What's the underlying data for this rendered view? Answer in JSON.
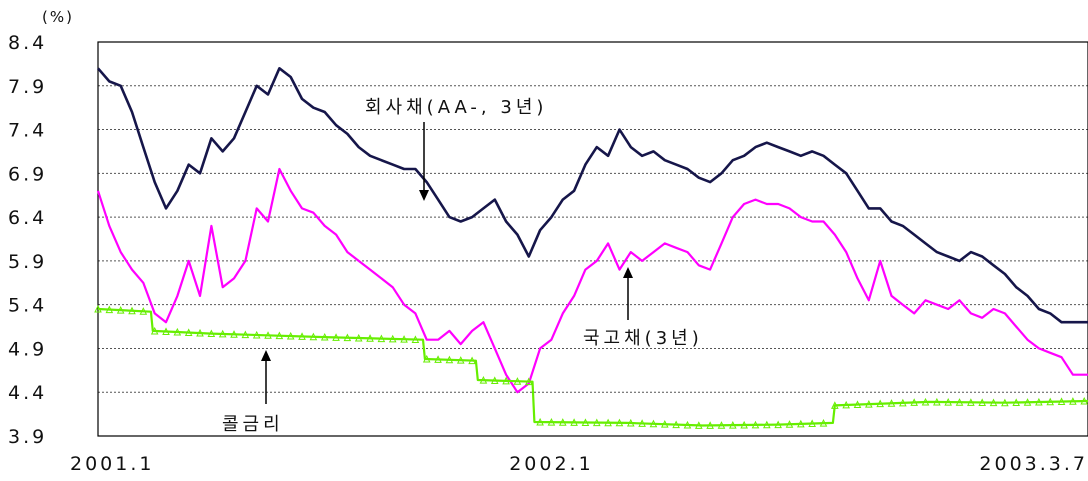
{
  "chart_data": {
    "type": "line",
    "y_unit": "(%)",
    "ylim": [
      3.9,
      8.4
    ],
    "y_ticks": [
      "8.4",
      "7.9",
      "7.4",
      "6.9",
      "6.4",
      "5.9",
      "5.4",
      "4.9",
      "4.4",
      "3.9"
    ],
    "x_ticks": [
      "2001.1",
      "2002.1",
      "2003.3.7"
    ],
    "x_tick_positions": [
      0,
      12,
      26.2
    ],
    "x_range": [
      0,
      26.2
    ],
    "grid": true,
    "annotations": [
      {
        "text": "회사채(AA-, 3년)",
        "series": 0
      },
      {
        "text": "국고채(3년)",
        "series": 1
      },
      {
        "text": "콜금리",
        "series": 2
      }
    ],
    "series": [
      {
        "name": "회사채(AA-, 3년)",
        "color": "#16164a",
        "points": [
          [
            0,
            8.1
          ],
          [
            0.3,
            7.95
          ],
          [
            0.6,
            7.9
          ],
          [
            0.9,
            7.6
          ],
          [
            1.2,
            7.2
          ],
          [
            1.5,
            6.8
          ],
          [
            1.8,
            6.5
          ],
          [
            2.1,
            6.7
          ],
          [
            2.4,
            7.0
          ],
          [
            2.7,
            6.9
          ],
          [
            3.0,
            7.3
          ],
          [
            3.3,
            7.15
          ],
          [
            3.6,
            7.3
          ],
          [
            3.9,
            7.6
          ],
          [
            4.2,
            7.9
          ],
          [
            4.5,
            7.8
          ],
          [
            4.8,
            8.1
          ],
          [
            5.1,
            8.0
          ],
          [
            5.4,
            7.75
          ],
          [
            5.7,
            7.65
          ],
          [
            6.0,
            7.6
          ],
          [
            6.3,
            7.45
          ],
          [
            6.6,
            7.35
          ],
          [
            6.9,
            7.2
          ],
          [
            7.2,
            7.1
          ],
          [
            7.5,
            7.05
          ],
          [
            7.8,
            7.0
          ],
          [
            8.1,
            6.95
          ],
          [
            8.4,
            6.95
          ],
          [
            8.7,
            6.8
          ],
          [
            9.0,
            6.6
          ],
          [
            9.3,
            6.4
          ],
          [
            9.6,
            6.35
          ],
          [
            9.9,
            6.4
          ],
          [
            10.2,
            6.5
          ],
          [
            10.5,
            6.6
          ],
          [
            10.8,
            6.35
          ],
          [
            11.1,
            6.2
          ],
          [
            11.4,
            5.95
          ],
          [
            11.7,
            6.25
          ],
          [
            12.0,
            6.4
          ],
          [
            12.3,
            6.6
          ],
          [
            12.6,
            6.7
          ],
          [
            12.9,
            7.0
          ],
          [
            13.2,
            7.2
          ],
          [
            13.5,
            7.1
          ],
          [
            13.8,
            7.4
          ],
          [
            14.1,
            7.2
          ],
          [
            14.4,
            7.1
          ],
          [
            14.7,
            7.15
          ],
          [
            15.0,
            7.05
          ],
          [
            15.3,
            7.0
          ],
          [
            15.6,
            6.95
          ],
          [
            15.9,
            6.85
          ],
          [
            16.2,
            6.8
          ],
          [
            16.5,
            6.9
          ],
          [
            16.8,
            7.05
          ],
          [
            17.1,
            7.1
          ],
          [
            17.4,
            7.2
          ],
          [
            17.7,
            7.25
          ],
          [
            18.0,
            7.2
          ],
          [
            18.3,
            7.15
          ],
          [
            18.6,
            7.1
          ],
          [
            18.9,
            7.15
          ],
          [
            19.2,
            7.1
          ],
          [
            19.5,
            7.0
          ],
          [
            19.8,
            6.9
          ],
          [
            20.1,
            6.7
          ],
          [
            20.4,
            6.5
          ],
          [
            20.7,
            6.5
          ],
          [
            21.0,
            6.35
          ],
          [
            21.3,
            6.3
          ],
          [
            21.6,
            6.2
          ],
          [
            21.9,
            6.1
          ],
          [
            22.2,
            6.0
          ],
          [
            22.5,
            5.95
          ],
          [
            22.8,
            5.9
          ],
          [
            23.1,
            6.0
          ],
          [
            23.4,
            5.95
          ],
          [
            23.7,
            5.85
          ],
          [
            24.0,
            5.75
          ],
          [
            24.3,
            5.6
          ],
          [
            24.6,
            5.5
          ],
          [
            24.9,
            5.35
          ],
          [
            25.2,
            5.3
          ],
          [
            25.5,
            5.2
          ],
          [
            25.8,
            5.2
          ],
          [
            26.2,
            5.2
          ]
        ]
      },
      {
        "name": "국고채(3년)",
        "color": "#ff00ff",
        "points": [
          [
            0,
            6.7
          ],
          [
            0.3,
            6.3
          ],
          [
            0.6,
            6.0
          ],
          [
            0.9,
            5.8
          ],
          [
            1.2,
            5.65
          ],
          [
            1.5,
            5.3
          ],
          [
            1.8,
            5.2
          ],
          [
            2.1,
            5.5
          ],
          [
            2.4,
            5.9
          ],
          [
            2.7,
            5.5
          ],
          [
            3.0,
            6.3
          ],
          [
            3.3,
            5.6
          ],
          [
            3.6,
            5.7
          ],
          [
            3.9,
            5.9
          ],
          [
            4.2,
            6.5
          ],
          [
            4.5,
            6.35
          ],
          [
            4.8,
            6.95
          ],
          [
            5.1,
            6.7
          ],
          [
            5.4,
            6.5
          ],
          [
            5.7,
            6.45
          ],
          [
            6.0,
            6.3
          ],
          [
            6.3,
            6.2
          ],
          [
            6.6,
            6.0
          ],
          [
            6.9,
            5.9
          ],
          [
            7.2,
            5.8
          ],
          [
            7.5,
            5.7
          ],
          [
            7.8,
            5.6
          ],
          [
            8.1,
            5.4
          ],
          [
            8.4,
            5.3
          ],
          [
            8.7,
            5.0
          ],
          [
            9.0,
            5.0
          ],
          [
            9.3,
            5.1
          ],
          [
            9.6,
            4.95
          ],
          [
            9.9,
            5.1
          ],
          [
            10.2,
            5.2
          ],
          [
            10.5,
            4.9
          ],
          [
            10.8,
            4.6
          ],
          [
            11.1,
            4.4
          ],
          [
            11.4,
            4.5
          ],
          [
            11.7,
            4.9
          ],
          [
            12.0,
            5.0
          ],
          [
            12.3,
            5.3
          ],
          [
            12.6,
            5.5
          ],
          [
            12.9,
            5.8
          ],
          [
            13.2,
            5.9
          ],
          [
            13.5,
            6.1
          ],
          [
            13.8,
            5.8
          ],
          [
            14.1,
            6.0
          ],
          [
            14.4,
            5.9
          ],
          [
            14.7,
            6.0
          ],
          [
            15.0,
            6.1
          ],
          [
            15.3,
            6.05
          ],
          [
            15.6,
            6.0
          ],
          [
            15.9,
            5.85
          ],
          [
            16.2,
            5.8
          ],
          [
            16.5,
            6.1
          ],
          [
            16.8,
            6.4
          ],
          [
            17.1,
            6.55
          ],
          [
            17.4,
            6.6
          ],
          [
            17.7,
            6.55
          ],
          [
            18.0,
            6.55
          ],
          [
            18.3,
            6.5
          ],
          [
            18.6,
            6.4
          ],
          [
            18.9,
            6.35
          ],
          [
            19.2,
            6.35
          ],
          [
            19.5,
            6.2
          ],
          [
            19.8,
            6.0
          ],
          [
            20.1,
            5.7
          ],
          [
            20.4,
            5.45
          ],
          [
            20.7,
            5.9
          ],
          [
            21.0,
            5.5
          ],
          [
            21.3,
            5.4
          ],
          [
            21.6,
            5.3
          ],
          [
            21.9,
            5.45
          ],
          [
            22.2,
            5.4
          ],
          [
            22.5,
            5.35
          ],
          [
            22.8,
            5.45
          ],
          [
            23.1,
            5.3
          ],
          [
            23.4,
            5.25
          ],
          [
            23.7,
            5.35
          ],
          [
            24.0,
            5.3
          ],
          [
            24.3,
            5.15
          ],
          [
            24.6,
            5.0
          ],
          [
            24.9,
            4.9
          ],
          [
            25.2,
            4.85
          ],
          [
            25.5,
            4.8
          ],
          [
            25.8,
            4.6
          ],
          [
            26.2,
            4.6
          ]
        ]
      },
      {
        "name": "콜금리",
        "color": "#66ee00",
        "points": [
          [
            0,
            5.35
          ],
          [
            1.4,
            5.32
          ],
          [
            1.45,
            5.1
          ],
          [
            3.0,
            5.07
          ],
          [
            6.0,
            5.03
          ],
          [
            8.6,
            5.0
          ],
          [
            8.65,
            4.78
          ],
          [
            10.0,
            4.76
          ],
          [
            10.05,
            4.54
          ],
          [
            11.5,
            4.52
          ],
          [
            11.55,
            4.06
          ],
          [
            14.0,
            4.05
          ],
          [
            16.0,
            4.02
          ],
          [
            18.0,
            4.03
          ],
          [
            19.45,
            4.05
          ],
          [
            19.5,
            4.25
          ],
          [
            22.0,
            4.29
          ],
          [
            24.0,
            4.28
          ],
          [
            26.2,
            4.3
          ]
        ]
      }
    ]
  }
}
